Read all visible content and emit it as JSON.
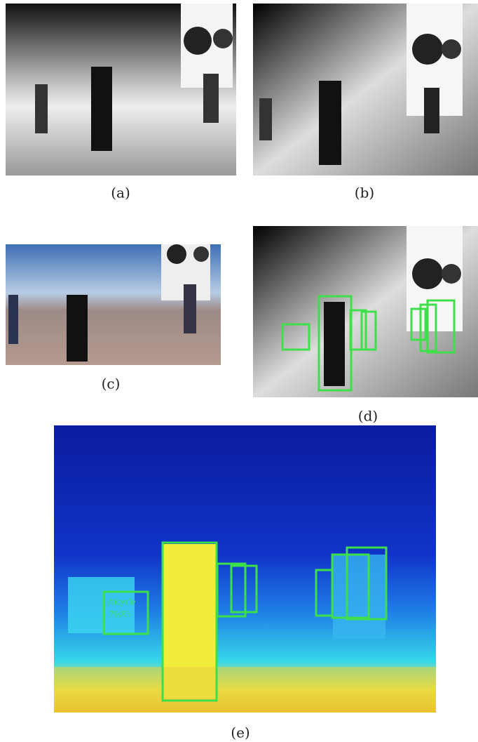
{
  "figure": {
    "captions": [
      "(a)",
      "(b)",
      "(c)",
      "(d)",
      "(e)"
    ],
    "detections": {
      "label": "bicycle",
      "score": "79.83"
    }
  }
}
